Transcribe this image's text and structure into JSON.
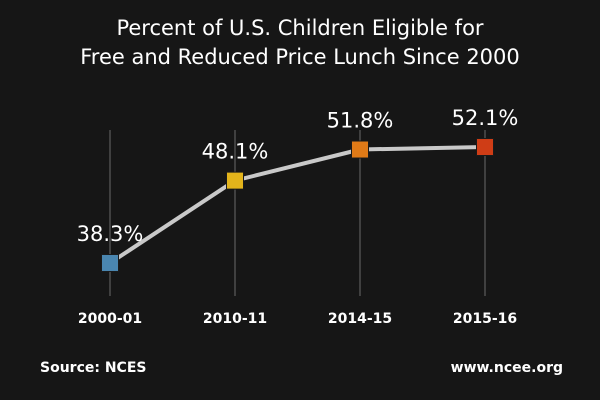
{
  "chart_data": {
    "type": "line",
    "title_lines": [
      "Percent of U.S. Children Eligible for",
      "Free and Reduced Price Lunch Since 2000"
    ],
    "categories": [
      "2000-01",
      "2010-11",
      "2014-15",
      "2015-16"
    ],
    "values": [
      38.3,
      48.1,
      51.8,
      52.1
    ],
    "data_labels": [
      "38.3%",
      "48.1%",
      "51.8%",
      "52.1%"
    ],
    "marker_colors": [
      "#4a86b0",
      "#e3b41b",
      "#e07a17",
      "#cf3d16"
    ],
    "line_color": "#c9c9c9",
    "gridlines": "vertical",
    "legend": "none"
  },
  "footer": {
    "source": "Source: NCES",
    "site": "www.ncee.org"
  }
}
